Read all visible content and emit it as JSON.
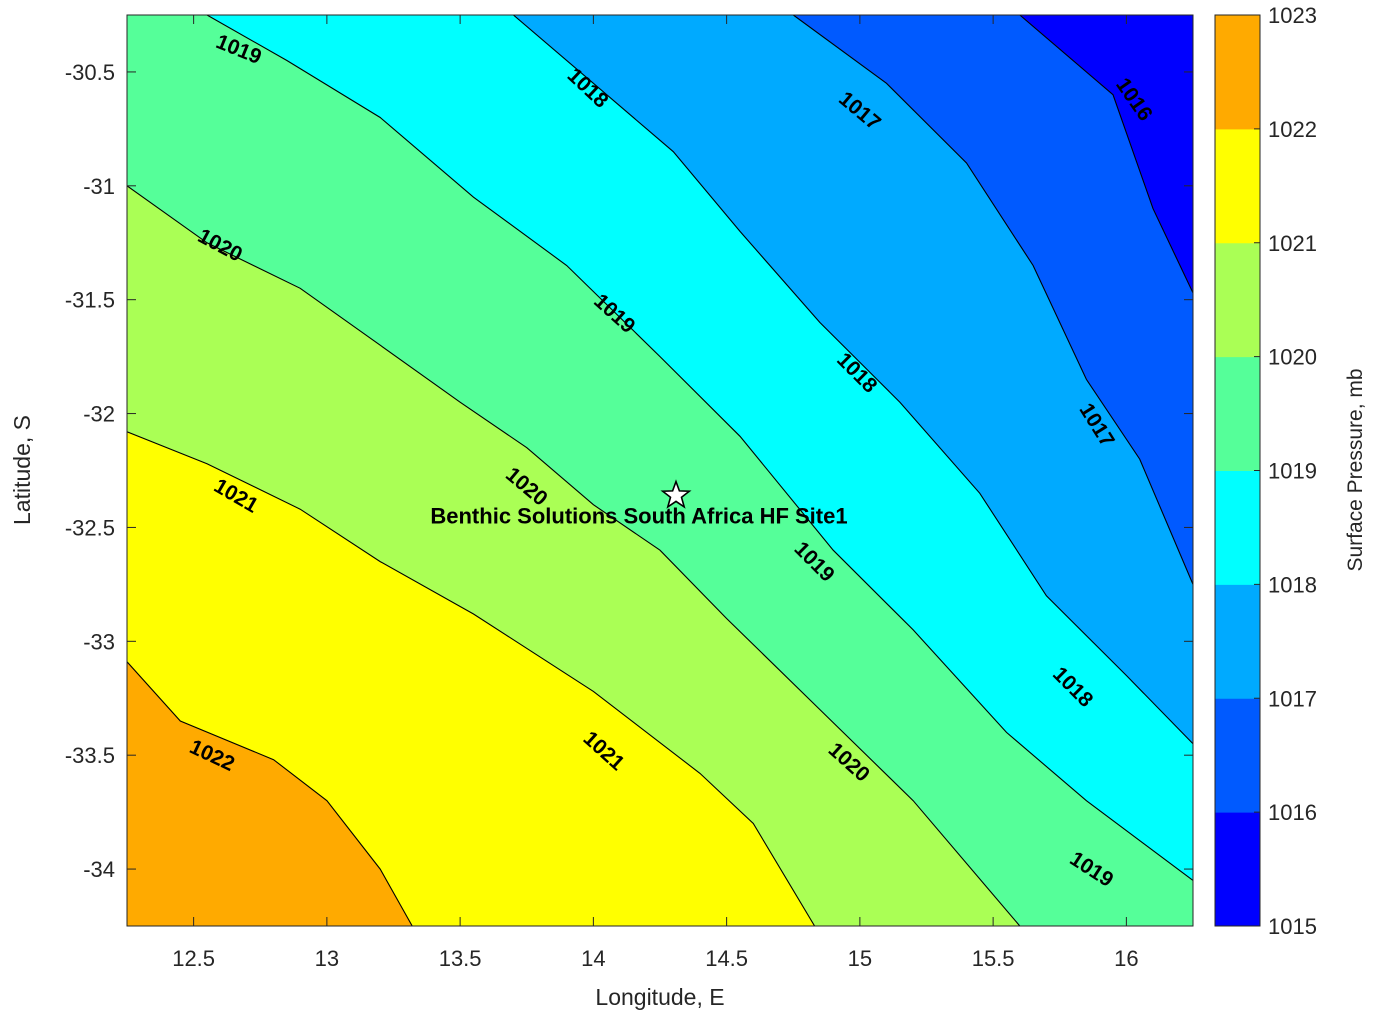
{
  "chart_data": {
    "type": "filled-contour",
    "title": "",
    "xlabel": "Longitude, E",
    "ylabel": "Latitude, S",
    "xlim": [
      12.25,
      16.25
    ],
    "ylim": [
      -34.25,
      -30.25
    ],
    "xticks": [
      12.5,
      13,
      13.5,
      14,
      14.5,
      15,
      15.5,
      16
    ],
    "yticks": [
      -30.5,
      -31,
      -31.5,
      -32,
      -32.5,
      -33,
      -33.5,
      -34
    ],
    "grid": false,
    "colorbar": {
      "label": "Surface Pressure, mb",
      "levels": [
        1015,
        1016,
        1017,
        1018,
        1019,
        1020,
        1021,
        1022,
        1023
      ],
      "colors": [
        "#0000ff",
        "#005aff",
        "#00aaff",
        "#00ffff",
        "#55ff99",
        "#aaff55",
        "#ffff00",
        "#ffaa00",
        "#ff5500"
      ]
    },
    "contours": [
      {
        "level": 1022,
        "points": [
          [
            12.25,
            -33.09
          ],
          [
            12.45,
            -33.35
          ],
          [
            12.8,
            -33.52
          ],
          [
            13.0,
            -33.7
          ],
          [
            13.2,
            -34.0
          ],
          [
            13.32,
            -34.25
          ]
        ]
      },
      {
        "level": 1021,
        "points": [
          [
            12.25,
            -32.08
          ],
          [
            12.55,
            -32.22
          ],
          [
            12.9,
            -32.42
          ],
          [
            13.2,
            -32.65
          ],
          [
            13.55,
            -32.88
          ],
          [
            14.0,
            -33.22
          ],
          [
            14.4,
            -33.58
          ],
          [
            14.6,
            -33.8
          ],
          [
            14.83,
            -34.25
          ]
        ]
      },
      {
        "level": 1020,
        "points": [
          [
            12.25,
            -31.0
          ],
          [
            12.55,
            -31.25
          ],
          [
            12.9,
            -31.45
          ],
          [
            13.2,
            -31.7
          ],
          [
            13.5,
            -31.95
          ],
          [
            13.75,
            -32.15
          ],
          [
            14.0,
            -32.4
          ],
          [
            14.25,
            -32.6
          ],
          [
            14.5,
            -32.9
          ],
          [
            14.85,
            -33.3
          ],
          [
            15.2,
            -33.7
          ],
          [
            15.6,
            -34.25
          ]
        ]
      },
      {
        "level": 1019,
        "points": [
          [
            12.55,
            -30.25
          ],
          [
            12.85,
            -30.45
          ],
          [
            13.2,
            -30.7
          ],
          [
            13.55,
            -31.05
          ],
          [
            13.9,
            -31.35
          ],
          [
            14.25,
            -31.75
          ],
          [
            14.55,
            -32.1
          ],
          [
            14.9,
            -32.6
          ],
          [
            15.2,
            -32.95
          ],
          [
            15.55,
            -33.4
          ],
          [
            15.85,
            -33.7
          ],
          [
            16.25,
            -34.05
          ]
        ]
      },
      {
        "level": 1018,
        "points": [
          [
            13.7,
            -30.25
          ],
          [
            14.0,
            -30.55
          ],
          [
            14.3,
            -30.85
          ],
          [
            14.55,
            -31.2
          ],
          [
            14.85,
            -31.6
          ],
          [
            15.15,
            -31.95
          ],
          [
            15.45,
            -32.35
          ],
          [
            15.7,
            -32.8
          ],
          [
            16.0,
            -33.15
          ],
          [
            16.25,
            -33.45
          ]
        ]
      },
      {
        "level": 1017,
        "points": [
          [
            14.75,
            -30.25
          ],
          [
            15.1,
            -30.55
          ],
          [
            15.4,
            -30.9
          ],
          [
            15.65,
            -31.35
          ],
          [
            15.85,
            -31.85
          ],
          [
            16.05,
            -32.2
          ],
          [
            16.25,
            -32.75
          ]
        ]
      },
      {
        "level": 1016,
        "points": [
          [
            15.6,
            -30.25
          ],
          [
            15.95,
            -30.6
          ],
          [
            16.1,
            -31.1
          ],
          [
            16.25,
            -31.47
          ]
        ]
      }
    ],
    "contour_labels": [
      {
        "text": "1019",
        "lon": 12.67,
        "lat": -30.4,
        "angle": 22
      },
      {
        "text": "1018",
        "lon": 13.98,
        "lat": -30.57,
        "angle": 43
      },
      {
        "text": "1017",
        "lon": 15.0,
        "lat": -30.67,
        "angle": 40
      },
      {
        "text": "1016",
        "lon": 16.03,
        "lat": -30.62,
        "angle": 55
      },
      {
        "text": "1020",
        "lon": 12.6,
        "lat": -31.26,
        "angle": 28
      },
      {
        "text": "1019",
        "lon": 14.08,
        "lat": -31.56,
        "angle": 42
      },
      {
        "text": "1018",
        "lon": 14.99,
        "lat": -31.82,
        "angle": 45
      },
      {
        "text": "1017",
        "lon": 15.89,
        "lat": -32.05,
        "angle": 58
      },
      {
        "text": "1021",
        "lon": 12.66,
        "lat": -32.36,
        "angle": 30
      },
      {
        "text": "1020",
        "lon": 13.75,
        "lat": -32.32,
        "angle": 40
      },
      {
        "text": "1019",
        "lon": 14.83,
        "lat": -32.65,
        "angle": 45
      },
      {
        "text": "1018",
        "lon": 15.8,
        "lat": -33.2,
        "angle": 45
      },
      {
        "text": "1022",
        "lon": 12.57,
        "lat": -33.5,
        "angle": 25
      },
      {
        "text": "1021",
        "lon": 14.04,
        "lat": -33.48,
        "angle": 42
      },
      {
        "text": "1020",
        "lon": 14.96,
        "lat": -33.53,
        "angle": 42
      },
      {
        "text": "1019",
        "lon": 15.87,
        "lat": -34.0,
        "angle": 33
      }
    ],
    "site": {
      "name": "Benthic Solutions South Africa HF Site1",
      "lon": 14.31,
      "lat": -32.36,
      "marker": "star"
    }
  }
}
